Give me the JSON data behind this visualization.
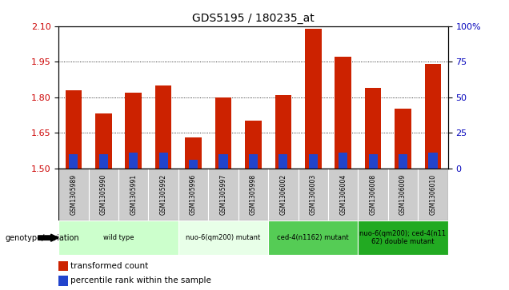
{
  "title": "GDS5195 / 180235_at",
  "samples": [
    "GSM1305989",
    "GSM1305990",
    "GSM1305991",
    "GSM1305992",
    "GSM1305996",
    "GSM1305997",
    "GSM1305998",
    "GSM1306002",
    "GSM1306003",
    "GSM1306004",
    "GSM1306008",
    "GSM1306009",
    "GSM1306010"
  ],
  "transformed_count": [
    1.83,
    1.73,
    1.82,
    1.85,
    1.63,
    1.8,
    1.7,
    1.81,
    2.09,
    1.97,
    1.84,
    1.75,
    1.94
  ],
  "percentile_rank_pct": [
    10,
    10,
    11,
    11,
    6,
    10,
    10,
    10,
    10,
    11,
    10,
    10,
    11
  ],
  "y_min": 1.5,
  "y_max": 2.1,
  "y_ticks_left": [
    1.5,
    1.65,
    1.8,
    1.95,
    2.1
  ],
  "y_ticks_right": [
    0,
    25,
    50,
    75,
    100
  ],
  "groups": [
    {
      "label": "wild type",
      "start": 0,
      "end": 3,
      "color": "#ccffcc"
    },
    {
      "label": "nuo-6(qm200) mutant",
      "start": 4,
      "end": 6,
      "color": "#e8ffe8"
    },
    {
      "label": "ced-4(n1162) mutant",
      "start": 7,
      "end": 9,
      "color": "#55cc55"
    },
    {
      "label": "nuo-6(qm200); ced-4(n11\n62) double mutant",
      "start": 10,
      "end": 12,
      "color": "#22aa22"
    }
  ],
  "bar_color_red": "#cc2200",
  "bar_color_blue": "#2244cc",
  "bg_color_tick": "#cccccc",
  "grid_color": "#000000",
  "left_tick_color": "#cc0000",
  "right_tick_color": "#0000bb",
  "bar_width": 0.55,
  "blue_bar_width": 0.3
}
